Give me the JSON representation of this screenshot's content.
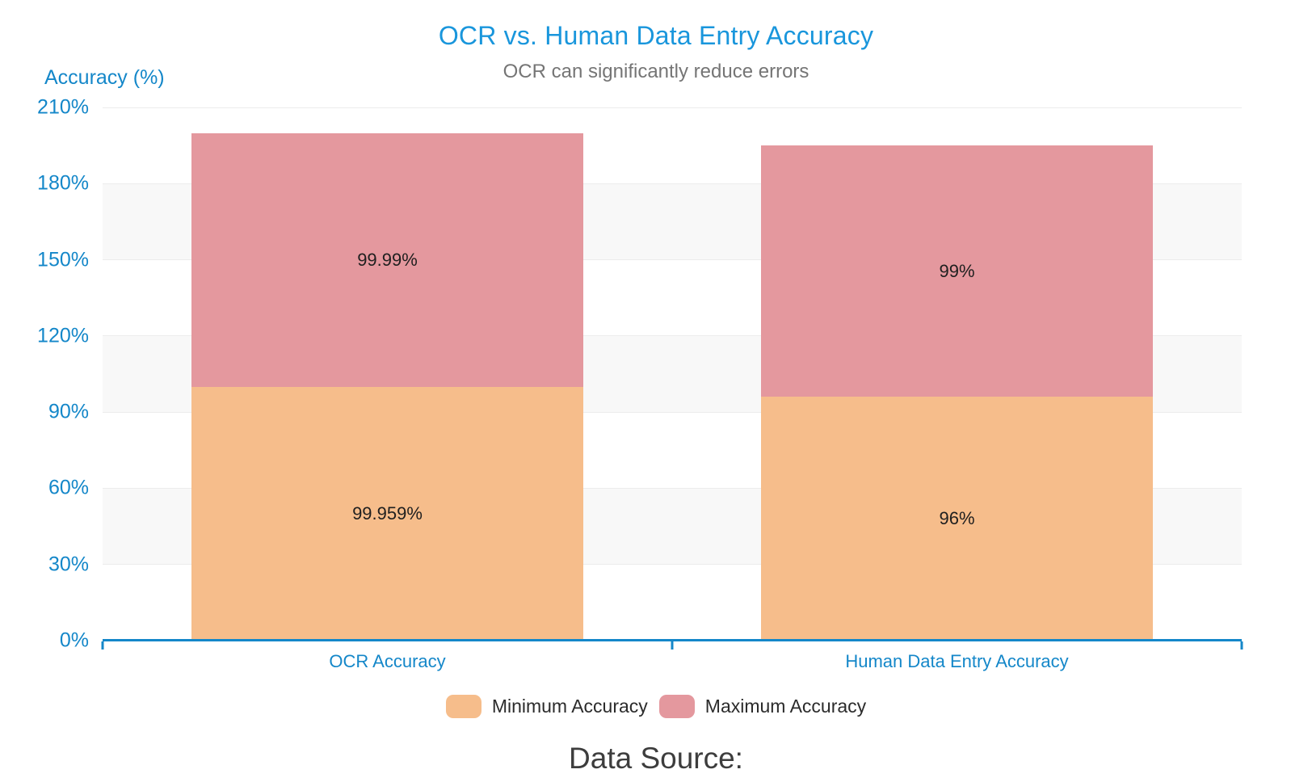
{
  "chart_data": {
    "type": "bar",
    "stacked": true,
    "title": "OCR vs. Human Data Entry Accuracy",
    "subtitle": "OCR can significantly reduce errors",
    "y_axis_name": "Accuracy (%)",
    "categories": [
      "OCR Accuracy",
      "Human Data Entry Accuracy"
    ],
    "series": [
      {
        "name": "Minimum Accuracy",
        "color": "#f6bd8b",
        "values": [
          99.959,
          96
        ],
        "data_labels": [
          "99.959%",
          "96%"
        ]
      },
      {
        "name": "Maximum Accuracy",
        "color": "#e4989e",
        "values": [
          99.99,
          99
        ],
        "data_labels": [
          "99.99%",
          "99%"
        ]
      }
    ],
    "y_axis": {
      "min": 0,
      "max": 210,
      "tick_step": 30,
      "tick_labels": [
        "0%",
        "30%",
        "60%",
        "90%",
        "120%",
        "150%",
        "180%",
        "210%"
      ]
    },
    "legend": [
      "Minimum Accuracy",
      "Maximum Accuracy"
    ],
    "legend_position": "bottom",
    "grid": true,
    "split_area_banding": true
  },
  "footer": {
    "data_source": "Data Source:"
  },
  "theme": {
    "title_blue": "#1996dc",
    "axis_blue": "#1487c9",
    "subtitle_text": "#757575",
    "label_text": "#1f1f1f",
    "legend_text": "#2b2b2b",
    "footer_text": "#3d3d3d",
    "band_white": "#ffffff",
    "band_gray": "#f8f8f8",
    "grid_line": "#ececec",
    "min_series_color": "#f6bd8b",
    "max_series_color": "#e4989e"
  }
}
